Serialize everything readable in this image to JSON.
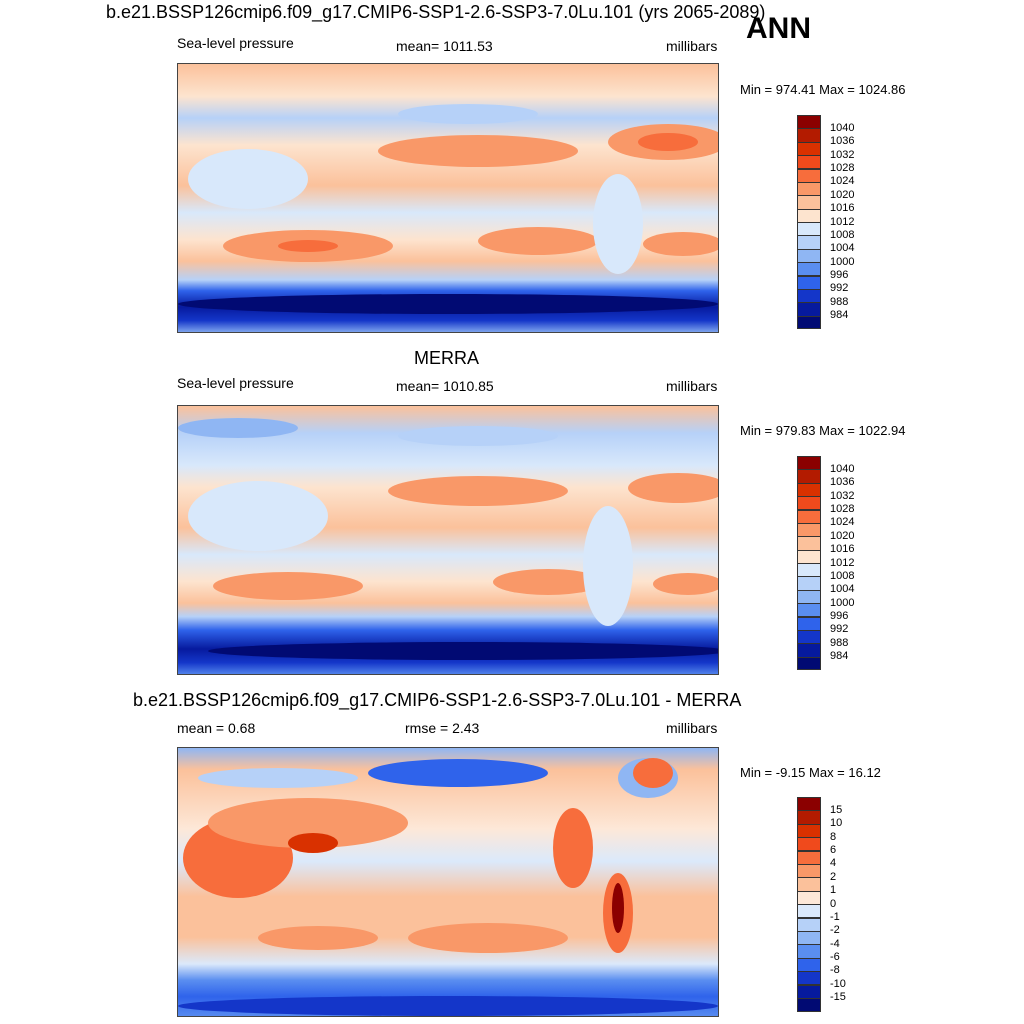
{
  "header": {
    "title": "b.e21.BSSP126cmip6.f09_g17.CMIP6-SSP1-2.6-SSP3-7.0Lu.101 (yrs 2065-2089)",
    "season": "ANN"
  },
  "panels": [
    {
      "title": "",
      "left_label": "Sea-level pressure",
      "center_label": "mean= 1011.53",
      "right_label": "millibars",
      "minmax": "Min = 974.41 Max = 1024.86",
      "colorbar": {
        "levels": [
          "1040",
          "1036",
          "1032",
          "1028",
          "1024",
          "1020",
          "1016",
          "1012",
          "1008",
          "1004",
          "1000",
          "996",
          "992",
          "988",
          "984"
        ],
        "colors": [
          "#8b0000",
          "#b31b00",
          "#d93100",
          "#f04a1c",
          "#f76d3c",
          "#f99868",
          "#fbc19b",
          "#fde4cf",
          "#d8e8fb",
          "#b6d1f8",
          "#8fb6f3",
          "#5a8ef0",
          "#2f63eb",
          "#1436c9",
          "#061a9e",
          "#010a73"
        ]
      }
    },
    {
      "title": "MERRA",
      "left_label": "Sea-level pressure",
      "center_label": "mean= 1010.85",
      "right_label": "millibars",
      "minmax": "Min = 979.83 Max = 1022.94",
      "colorbar": {
        "levels": [
          "1040",
          "1036",
          "1032",
          "1028",
          "1024",
          "1020",
          "1016",
          "1012",
          "1008",
          "1004",
          "1000",
          "996",
          "992",
          "988",
          "984"
        ],
        "colors": [
          "#8b0000",
          "#b31b00",
          "#d93100",
          "#f04a1c",
          "#f76d3c",
          "#f99868",
          "#fbc19b",
          "#fde4cf",
          "#d8e8fb",
          "#b6d1f8",
          "#8fb6f3",
          "#5a8ef0",
          "#2f63eb",
          "#1436c9",
          "#061a9e",
          "#010a73"
        ]
      }
    },
    {
      "title": "b.e21.BSSP126cmip6.f09_g17.CMIP6-SSP1-2.6-SSP3-7.0Lu.101 - MERRA",
      "left_label": "mean =   0.68",
      "center_label": "rmse =   2.43",
      "right_label": "millibars",
      "minmax": "Min =  -9.15 Max =  16.12",
      "colorbar": {
        "levels": [
          "15",
          "10",
          "8",
          "6",
          "4",
          "2",
          "1",
          "0",
          "-1",
          "-2",
          "-4",
          "-6",
          "-8",
          "-10",
          "-15"
        ],
        "colors": [
          "#8b0000",
          "#b31b00",
          "#d93100",
          "#f04a1c",
          "#f76d3c",
          "#f99868",
          "#fbc19b",
          "#fde8d8",
          "#dbe9fb",
          "#b6d1f8",
          "#8fb6f3",
          "#5a8ef0",
          "#2f63eb",
          "#1436c9",
          "#061a9e",
          "#010a73"
        ]
      }
    }
  ]
}
